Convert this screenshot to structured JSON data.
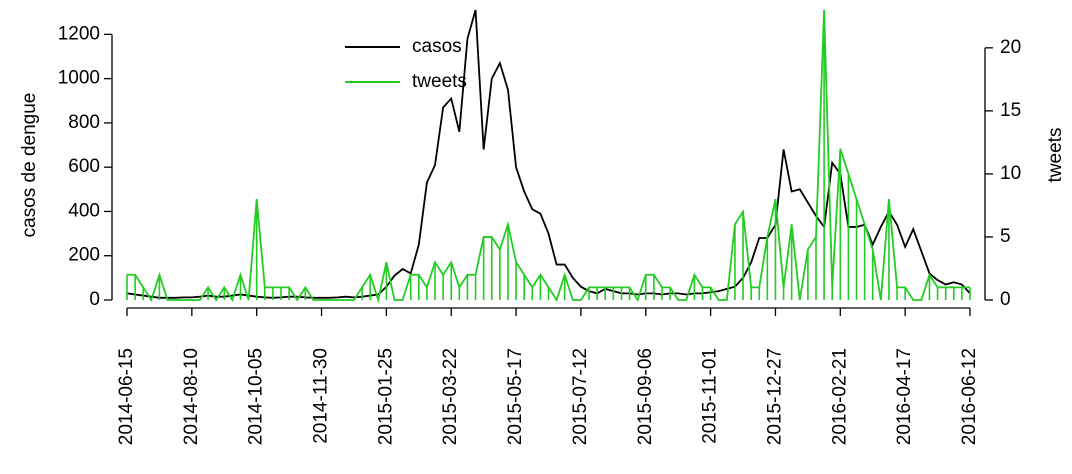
{
  "chart_data": {
    "type": "line",
    "ylabel": "casos de dengue",
    "y2label": "tweets",
    "categories": [
      "2014-06-15",
      null,
      null,
      null,
      null,
      null,
      null,
      null,
      "2014-08-10",
      null,
      null,
      null,
      null,
      null,
      null,
      null,
      "2014-10-05",
      null,
      null,
      null,
      null,
      null,
      null,
      null,
      "2014-11-30",
      null,
      null,
      null,
      null,
      null,
      null,
      null,
      "2015-01-25",
      null,
      null,
      null,
      null,
      null,
      null,
      null,
      "2015-03-22",
      null,
      null,
      null,
      null,
      null,
      null,
      null,
      "2015-05-17",
      null,
      null,
      null,
      null,
      null,
      null,
      null,
      "2015-07-12",
      null,
      null,
      null,
      null,
      null,
      null,
      null,
      "2015-09-06",
      null,
      null,
      null,
      null,
      null,
      null,
      null,
      "2015-11-01",
      null,
      null,
      null,
      null,
      null,
      null,
      null,
      "2015-12-27",
      null,
      null,
      null,
      null,
      null,
      null,
      null,
      "2016-02-21",
      null,
      null,
      null,
      null,
      null,
      null,
      null,
      "2016-04-17",
      null,
      null,
      null,
      null,
      null,
      null,
      null,
      "2016-06-12"
    ],
    "series": [
      {
        "name": "casos",
        "color": "#000000",
        "axis": "y",
        "values": [
          30,
          25,
          20,
          15,
          10,
          10,
          10,
          12,
          12,
          15,
          20,
          15,
          15,
          20,
          25,
          20,
          15,
          12,
          10,
          12,
          15,
          15,
          12,
          10,
          10,
          10,
          12,
          15,
          12,
          15,
          20,
          25,
          60,
          110,
          140,
          120,
          250,
          530,
          610,
          870,
          910,
          760,
          1180,
          1310,
          680,
          1000,
          1070,
          950,
          600,
          490,
          410,
          390,
          300,
          160,
          160,
          100,
          60,
          40,
          30,
          50,
          40,
          30,
          30,
          25,
          30,
          30,
          25,
          30,
          30,
          25,
          30,
          30,
          35,
          40,
          50,
          60,
          100,
          170,
          280,
          280,
          340,
          680,
          490,
          500,
          440,
          380,
          330,
          620,
          570,
          330,
          330,
          340,
          250,
          330,
          400,
          340,
          240,
          320,
          220,
          120,
          90,
          70,
          80,
          70,
          30
        ]
      },
      {
        "name": "tweets",
        "color": "#22cc22",
        "axis": "y2",
        "values": [
          2,
          2,
          1,
          0,
          2,
          0,
          0,
          0,
          0,
          0,
          1,
          0,
          1,
          0,
          2,
          0,
          8,
          1,
          1,
          1,
          1,
          0,
          1,
          0,
          0,
          0,
          0,
          0,
          0,
          1,
          2,
          0,
          3,
          0,
          0,
          2,
          2,
          1,
          3,
          2,
          3,
          1,
          2,
          2,
          5,
          5,
          4,
          6,
          3,
          2,
          1,
          2,
          1,
          0,
          2,
          0,
          0,
          1,
          1,
          1,
          1,
          1,
          1,
          0,
          2,
          2,
          1,
          1,
          0,
          0,
          2,
          1,
          1,
          0,
          0,
          6,
          7,
          1,
          1,
          5,
          8,
          1,
          6,
          0,
          4,
          5,
          23,
          1,
          12,
          10,
          8,
          6,
          4,
          0,
          8,
          1,
          1,
          0,
          0,
          2,
          1,
          1,
          1,
          1,
          1
        ]
      }
    ],
    "ylim": [
      0,
      1310
    ],
    "yticks": [
      0,
      200,
      400,
      600,
      800,
      1000,
      1200
    ],
    "y2lim": [
      0,
      23
    ],
    "y2ticks": [
      0,
      5,
      10,
      15,
      20
    ],
    "legend": "top-center"
  }
}
